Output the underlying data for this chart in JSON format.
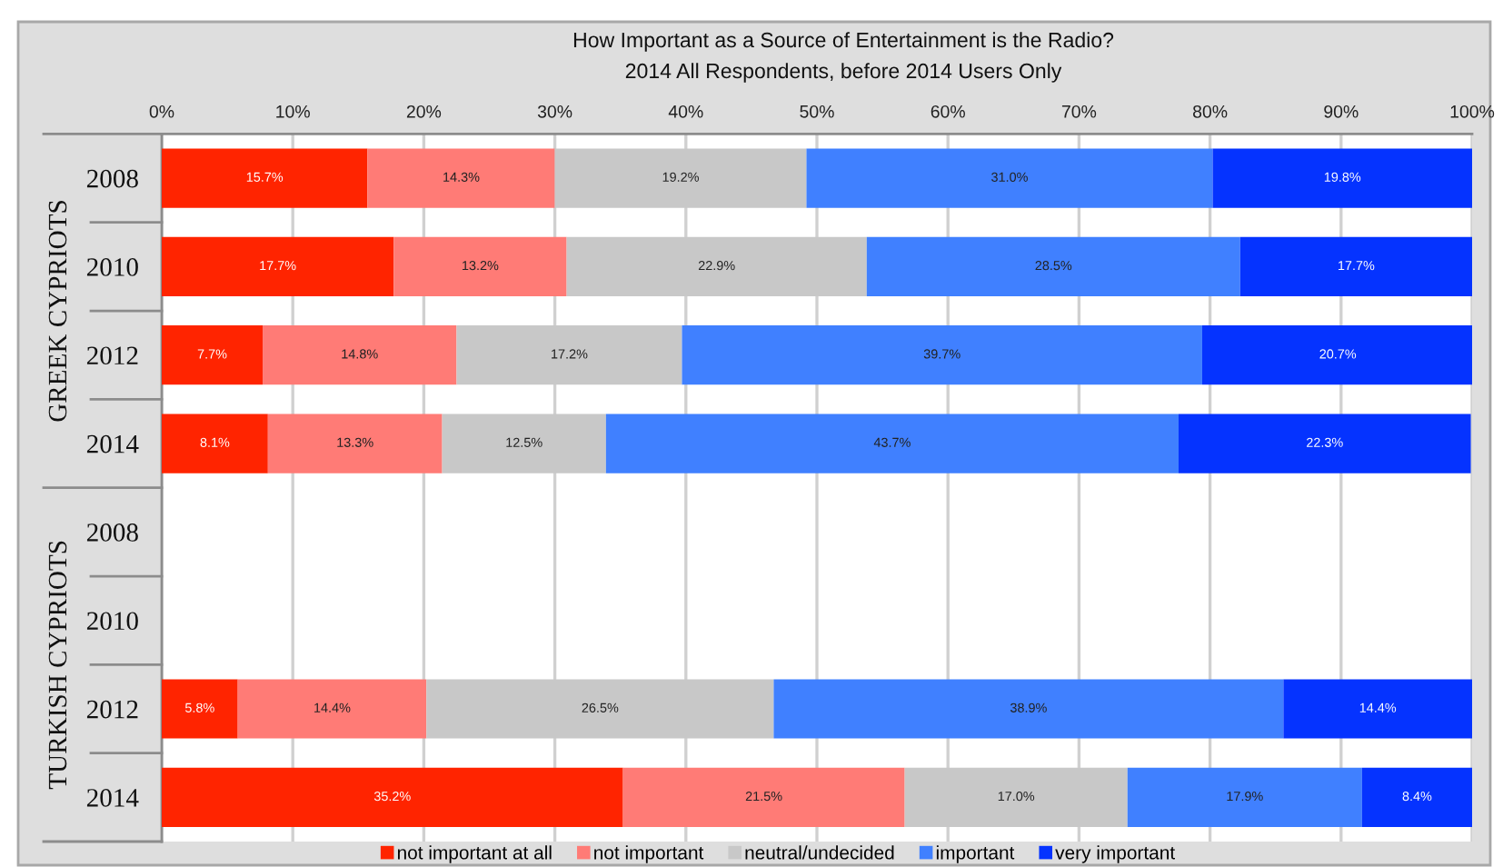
{
  "chart_data": {
    "type": "bar",
    "orientation": "horizontal",
    "stacked": true,
    "title": "How Important as a Source of Entertainment is the Radio?",
    "subtitle": "2014 All Respondents, before 2014 Users Only",
    "categories": [
      "2008",
      "2010",
      "2012",
      "2014",
      "2008",
      "2010",
      "2012",
      "2014"
    ],
    "annotations": [
      "GREEK CYPRIOTS",
      "TURKISH CYPRIOTS"
    ],
    "series": [
      {
        "name": "not important at all",
        "color": "#ff2400",
        "values": [
          15.7,
          17.7,
          7.7,
          8.1,
          null,
          null,
          5.8,
          35.2
        ],
        "value_labels": [
          "15.7%",
          "17.7%",
          "7.7%",
          "8.1%",
          null,
          null,
          "5.8%",
          "35.2%"
        ]
      },
      {
        "name": "not important",
        "color": "#ff7b76",
        "values": [
          14.3,
          13.2,
          14.8,
          13.3,
          null,
          null,
          14.4,
          21.5
        ],
        "value_labels": [
          "14.3%",
          "13.2%",
          "14.8%",
          "13.3%",
          null,
          null,
          "14.4%",
          "21.5%"
        ]
      },
      {
        "name": "neutral/undecided",
        "color": "#c8c8c8",
        "values": [
          19.2,
          22.9,
          17.2,
          12.5,
          null,
          null,
          26.5,
          17.0
        ],
        "value_labels": [
          "19.2%",
          "22.9%",
          "17.2%",
          "12.5%",
          null,
          null,
          "26.5%",
          "17.0%"
        ]
      },
      {
        "name": "important",
        "color": "#4080ff",
        "values": [
          31.0,
          28.5,
          39.7,
          43.7,
          null,
          null,
          38.9,
          17.9
        ],
        "value_labels": [
          "31.0%",
          "28.5%",
          "39.7%",
          "43.7%",
          null,
          null,
          "38.9%",
          "17.9%"
        ]
      },
      {
        "name": "very important",
        "color": "#0533ff",
        "values": [
          19.8,
          17.7,
          20.7,
          22.3,
          null,
          null,
          14.4,
          8.4
        ],
        "value_labels": [
          "19.8%",
          "17.7%",
          "20.7%",
          "22.3%",
          null,
          null,
          "14.4%",
          "8.4%"
        ]
      }
    ],
    "xlim": [
      0,
      100
    ],
    "xticks": [
      {
        "value": 0,
        "label": "0%"
      },
      {
        "value": 10,
        "label": "10%"
      },
      {
        "value": 20,
        "label": "20%"
      },
      {
        "value": 30,
        "label": "30%"
      },
      {
        "value": 40,
        "label": "40%"
      },
      {
        "value": 50,
        "label": "50%"
      },
      {
        "value": 60,
        "label": "60%"
      },
      {
        "value": 70,
        "label": "70%"
      },
      {
        "value": 80,
        "label": "80%"
      },
      {
        "value": 90,
        "label": "90%"
      },
      {
        "value": 100,
        "label": "100%"
      }
    ],
    "grid": "x",
    "legend": "bottom"
  }
}
